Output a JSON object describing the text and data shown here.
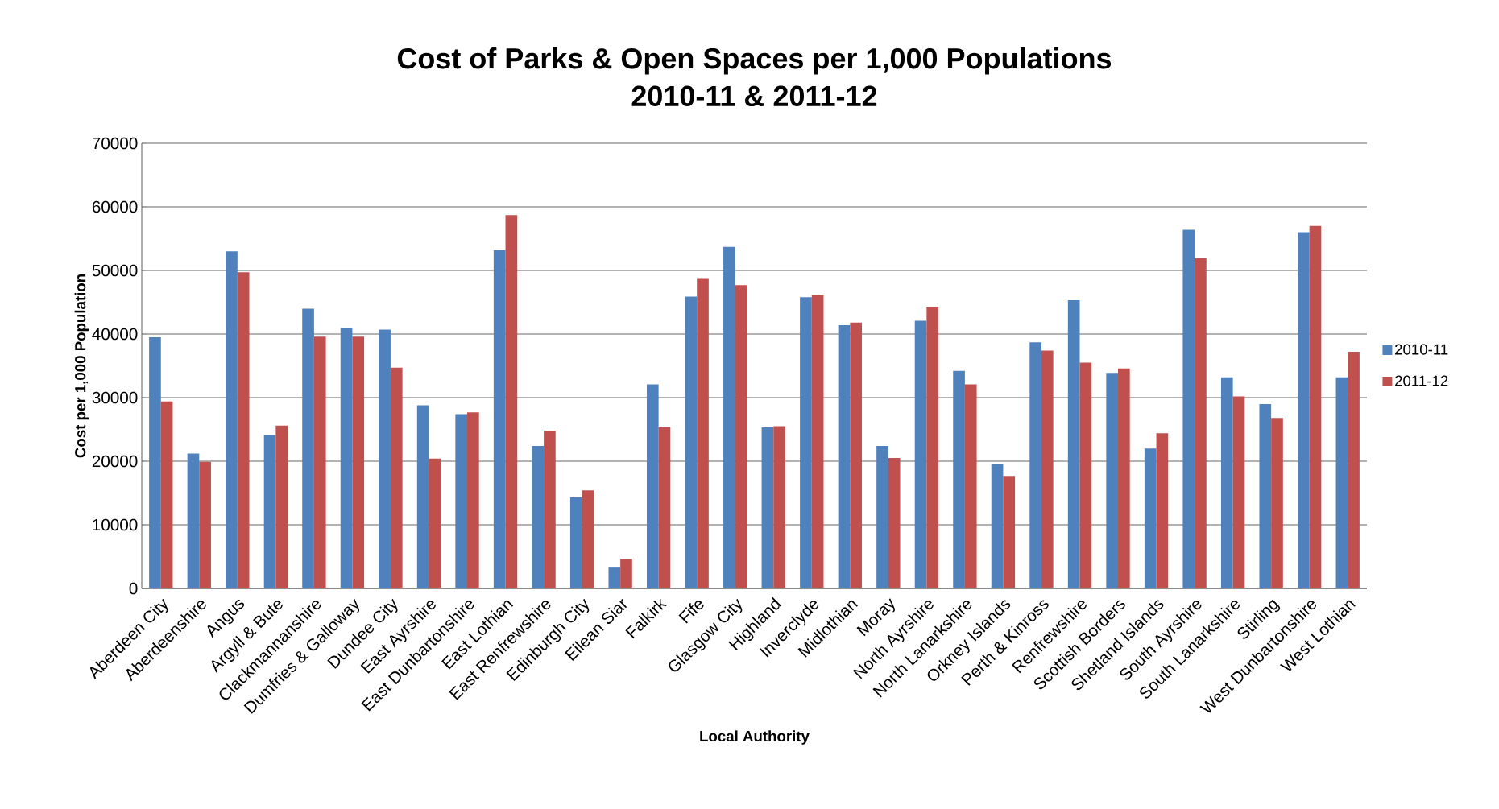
{
  "chart_data": {
    "type": "bar",
    "title": "Cost of Parks & Open Spaces per 1,000 Populations",
    "subtitle": "2010-11 & 2011-12",
    "xlabel": "Local Authority",
    "ylabel": "Cost per 1,000 Population",
    "categories": [
      "Aberdeen City",
      "Aberdeenshire",
      "Angus",
      "Argyll & Bute",
      "Clackmannanshire",
      "Dumfries & Galloway",
      "Dundee City",
      "East Ayrshire",
      "East Dunbartonshire",
      "East Lothian",
      "East Renfrewshire",
      "Edinburgh City",
      "Eilean Siar",
      "Falkirk",
      "Fife",
      "Glasgow City",
      "Highland",
      "Inverclyde",
      "Midlothian",
      "Moray",
      "North Ayrshire",
      "North Lanarkshire",
      "Orkney Islands",
      "Perth & Kinross",
      "Renfrewshire",
      "Scottish Borders",
      "Shetland Islands",
      "South Ayrshire",
      "South Lanarkshire",
      "Stirling",
      "West Dunbartonshire",
      "West Lothian"
    ],
    "series": [
      {
        "name": "2010-11",
        "color": "#4f81bd",
        "values": [
          39500,
          21200,
          53000,
          24100,
          44000,
          40900,
          40700,
          28800,
          27400,
          53200,
          22400,
          14300,
          3400,
          32100,
          45900,
          53700,
          25300,
          45800,
          41400,
          22400,
          42100,
          34200,
          19600,
          38700,
          45300,
          33900,
          22000,
          56400,
          33200,
          29000,
          56000,
          33200
        ]
      },
      {
        "name": "2011-12",
        "color": "#c0504d",
        "values": [
          29400,
          19900,
          49700,
          25600,
          39600,
          39600,
          34700,
          20400,
          27700,
          58700,
          24800,
          15400,
          4600,
          25300,
          48800,
          47700,
          25500,
          46200,
          41800,
          20500,
          44300,
          32100,
          17700,
          37400,
          35500,
          34600,
          24400,
          51900,
          30200,
          26800,
          57000,
          37200
        ]
      }
    ],
    "ylim": [
      0,
      70000
    ],
    "yticks": [
      0,
      10000,
      20000,
      30000,
      40000,
      50000,
      60000,
      70000
    ],
    "grid": "y",
    "legend": "right"
  }
}
